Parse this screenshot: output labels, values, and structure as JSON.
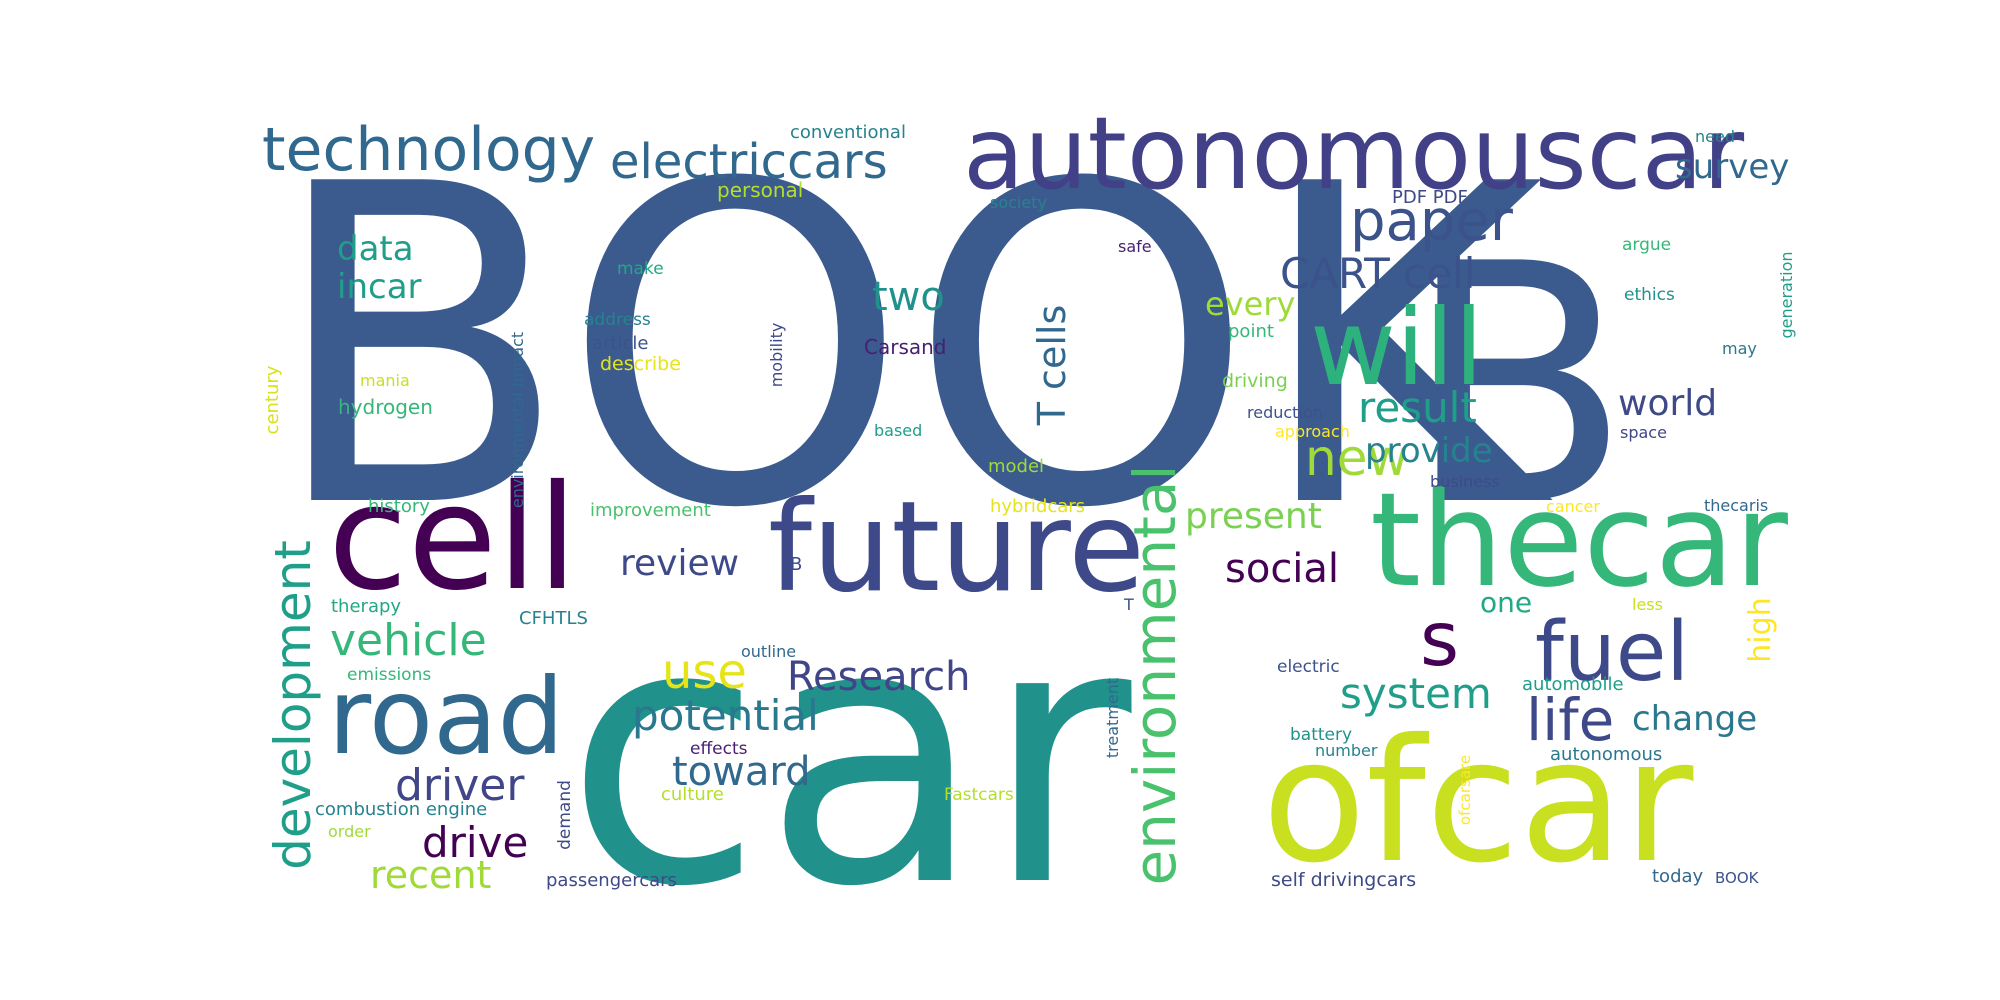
{
  "words": [
    {
      "text": "BOOK",
      "color": "#3b5b8f"
    },
    {
      "text": "car",
      "color": "#21918c"
    },
    {
      "text": "B",
      "color": "#3b5b8f"
    },
    {
      "text": "autonomouscar",
      "color": "#424086"
    },
    {
      "text": "ofcar",
      "color": "#c8e020"
    },
    {
      "text": "thecar",
      "color": "#35b779"
    },
    {
      "text": "cell",
      "color": "#440154"
    },
    {
      "text": "future",
      "color": "#3e4989"
    },
    {
      "text": "will",
      "color": "#2db27d"
    },
    {
      "text": "road",
      "color": "#31688e"
    },
    {
      "text": "fuel",
      "color": "#3e4989"
    },
    {
      "text": "technology",
      "color": "#31688e"
    },
    {
      "text": "electriccars",
      "color": "#31688e"
    },
    {
      "text": "environmental",
      "color": "#4ac16d"
    },
    {
      "text": "development",
      "color": "#1f9e89"
    },
    {
      "text": "paper",
      "color": "#3b528b"
    },
    {
      "text": "s",
      "color": "#440154"
    },
    {
      "text": "CART cell",
      "color": "#3b528b"
    },
    {
      "text": "new",
      "color": "#a0da39"
    },
    {
      "text": "life",
      "color": "#3e4989"
    },
    {
      "text": "use",
      "color": "#e6e419"
    },
    {
      "text": "Research",
      "color": "#414487"
    },
    {
      "text": "potential",
      "color": "#2a788e"
    },
    {
      "text": "driver",
      "color": "#404688"
    },
    {
      "text": "vehicle",
      "color": "#35b779"
    },
    {
      "text": "toward",
      "color": "#31688e"
    },
    {
      "text": "system",
      "color": "#1f9e89"
    },
    {
      "text": "social",
      "color": "#440154"
    },
    {
      "text": "drive",
      "color": "#440154"
    },
    {
      "text": "recent",
      "color": "#a0da39"
    },
    {
      "text": "present",
      "color": "#7ad151"
    },
    {
      "text": "result",
      "color": "#1f9e89"
    },
    {
      "text": "provide",
      "color": "#26828e"
    },
    {
      "text": "world",
      "color": "#3e4989"
    },
    {
      "text": "review",
      "color": "#3e4989"
    },
    {
      "text": "survey",
      "color": "#31688e"
    },
    {
      "text": "data",
      "color": "#1f9e89"
    },
    {
      "text": "incar",
      "color": "#1f9e89"
    },
    {
      "text": "two",
      "color": "#21918c"
    },
    {
      "text": "every",
      "color": "#a0da39"
    },
    {
      "text": "T cells",
      "color": "#31688e"
    },
    {
      "text": "change",
      "color": "#2a788e"
    },
    {
      "text": "high",
      "color": "#fde725"
    },
    {
      "text": "one",
      "color": "#22a884"
    },
    {
      "text": "conventional",
      "color": "#26828e"
    },
    {
      "text": "personal",
      "color": "#b5de2b"
    },
    {
      "text": "society",
      "color": "#26828e"
    },
    {
      "text": "PDF PDF",
      "color": "#3e4989"
    },
    {
      "text": "need",
      "color": "#26828e"
    },
    {
      "text": "safe",
      "color": "#481f70"
    },
    {
      "text": "generation",
      "color": "#1f9e89"
    },
    {
      "text": "argue",
      "color": "#35b779"
    },
    {
      "text": "ethics",
      "color": "#21918c"
    },
    {
      "text": "may",
      "color": "#2a788e"
    },
    {
      "text": "make",
      "color": "#22a884"
    },
    {
      "text": "address",
      "color": "#26828e"
    },
    {
      "text": "article",
      "color": "#3b528b"
    },
    {
      "text": "describe",
      "color": "#e6e419"
    },
    {
      "text": "Carsand",
      "color": "#481f70"
    },
    {
      "text": "mobility",
      "color": "#3e4989"
    },
    {
      "text": "environmental impact",
      "color": "#31688e"
    },
    {
      "text": "mania",
      "color": "#c8e020"
    },
    {
      "text": "hydrogen",
      "color": "#35b779"
    },
    {
      "text": "century",
      "color": "#d8e219"
    },
    {
      "text": "point",
      "color": "#35b779"
    },
    {
      "text": "driving",
      "color": "#7ad151"
    },
    {
      "text": "reduction",
      "color": "#3b528b"
    },
    {
      "text": "approach",
      "color": "#fde725"
    },
    {
      "text": "space",
      "color": "#404688"
    },
    {
      "text": "based",
      "color": "#1f9e89"
    },
    {
      "text": "model",
      "color": "#a0da39"
    },
    {
      "text": "business",
      "color": "#3e4989"
    },
    {
      "text": "history",
      "color": "#35b779"
    },
    {
      "text": "improvement",
      "color": "#4ac16d"
    },
    {
      "text": "hybridcars",
      "color": "#e6e419"
    },
    {
      "text": "cancer",
      "color": "#fde725"
    },
    {
      "text": "thecaris",
      "color": "#31688e"
    },
    {
      "text": "B",
      "color": "#3e4989"
    },
    {
      "text": "therapy",
      "color": "#22a884"
    },
    {
      "text": "T",
      "color": "#3b528b"
    },
    {
      "text": "less",
      "color": "#c8e020"
    },
    {
      "text": "CFHTLS",
      "color": "#26828e"
    },
    {
      "text": "outline",
      "color": "#31688e"
    },
    {
      "text": "emissions",
      "color": "#35b779"
    },
    {
      "text": "electric",
      "color": "#3b528b"
    },
    {
      "text": "automobile",
      "color": "#1f9e89"
    },
    {
      "text": "treatment",
      "color": "#31688e"
    },
    {
      "text": "effects",
      "color": "#481f70"
    },
    {
      "text": "battery",
      "color": "#21918c"
    },
    {
      "text": "autonomous",
      "color": "#2a788e"
    },
    {
      "text": "number",
      "color": "#26828e"
    },
    {
      "text": "combustion engine",
      "color": "#26828e"
    },
    {
      "text": "culture",
      "color": "#b5de2b"
    },
    {
      "text": "Fastcars",
      "color": "#b5de2b"
    },
    {
      "text": "ofcarsare",
      "color": "#fde725"
    },
    {
      "text": "order",
      "color": "#a0da39"
    },
    {
      "text": "demand",
      "color": "#3e4989"
    },
    {
      "text": "passengercars",
      "color": "#3e4989"
    },
    {
      "text": "self drivingcars",
      "color": "#3e4989"
    },
    {
      "text": "today",
      "color": "#31688e"
    },
    {
      "text": "BOOK",
      "color": "#3b528b"
    }
  ]
}
